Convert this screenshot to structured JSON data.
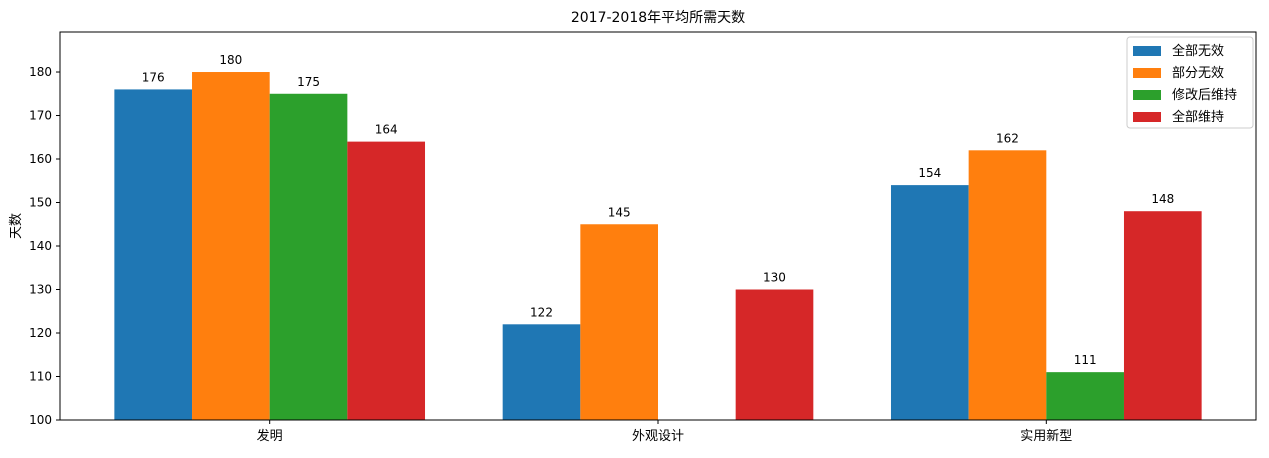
{
  "chart_data": {
    "type": "bar",
    "title": "2017-2018年平均所需天数",
    "xlabel": "",
    "ylabel": "天数",
    "categories": [
      "发明",
      "外观设计",
      "实用新型"
    ],
    "series": [
      {
        "name": "全部无效",
        "color": "#1f77b4",
        "values": [
          176,
          122,
          154
        ]
      },
      {
        "name": "部分无效",
        "color": "#ff7f0e",
        "values": [
          180,
          145,
          162
        ]
      },
      {
        "name": "修改后维持",
        "color": "#2ca02c",
        "values": [
          175,
          null,
          111
        ]
      },
      {
        "name": "全部维持",
        "color": "#d62728",
        "values": [
          164,
          130,
          148
        ]
      }
    ],
    "ylim": [
      100,
      189.2
    ],
    "yticks": [
      100,
      110,
      120,
      130,
      140,
      150,
      160,
      170,
      180
    ],
    "grid": false,
    "legend": "top-right",
    "data_labels": true
  }
}
